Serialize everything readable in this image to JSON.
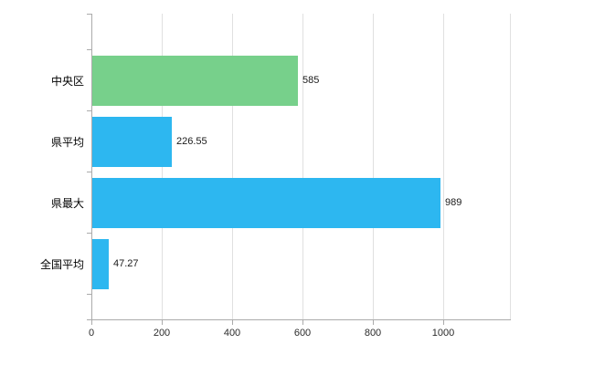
{
  "chart_data": {
    "type": "bar",
    "orientation": "horizontal",
    "title": "",
    "xlabel": "",
    "ylabel": "",
    "categories": [
      "中央区",
      "県平均",
      "県最大",
      "全国平均"
    ],
    "values": [
      585,
      226.55,
      989,
      47.27
    ],
    "value_labels": [
      "585",
      "226.55",
      "989",
      "47.27"
    ],
    "bar_colors": [
      "#77d08b",
      "#2db7f0",
      "#2db7f0",
      "#2db7f0"
    ],
    "xlim": [
      0,
      1190
    ],
    "x_ticks": [
      0,
      200,
      400,
      600,
      800,
      1000
    ],
    "x_tick_labels": [
      "0",
      "200",
      "400",
      "600",
      "800",
      "1000"
    ],
    "grid": true,
    "legend": "none"
  },
  "colors": {
    "background": "#ffffff",
    "gridline": "#e0e0e0",
    "axis": "#ababab",
    "green_bar": "#77d08b",
    "blue_bar": "#2db7f0",
    "label_text": "#1a1a1a"
  }
}
